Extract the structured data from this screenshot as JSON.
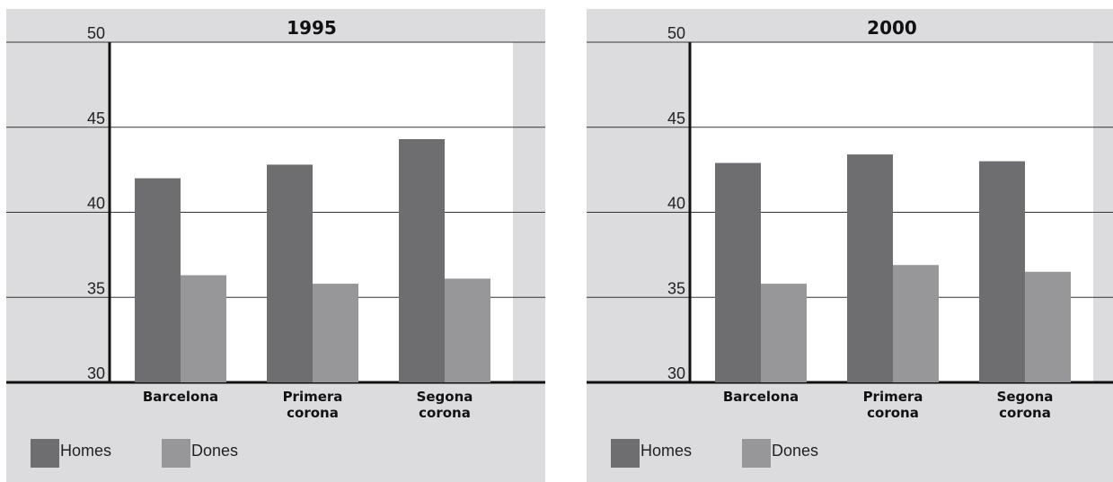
{
  "chart_data": [
    {
      "type": "bar",
      "title": "1995",
      "categories": [
        [
          "Barcelona"
        ],
        [
          "Primera",
          "corona"
        ],
        [
          "Segona",
          "corona"
        ]
      ],
      "series": [
        {
          "name": "Homes",
          "color": "#6e6e70",
          "values": [
            42.0,
            42.8,
            44.3
          ]
        },
        {
          "name": "Dones",
          "color": "#97979a",
          "values": [
            36.3,
            35.8,
            36.1
          ]
        }
      ],
      "yticks": [
        "30",
        "35",
        "40",
        "45",
        "50"
      ],
      "ylim": [
        30,
        50
      ],
      "grid": true,
      "legend_position": "bottom-left"
    },
    {
      "type": "bar",
      "title": "2000",
      "categories": [
        [
          "Barcelona"
        ],
        [
          "Primera",
          "corona"
        ],
        [
          "Segona",
          "corona"
        ]
      ],
      "series": [
        {
          "name": "Homes",
          "color": "#6e6e70",
          "values": [
            42.9,
            43.4,
            43.0
          ]
        },
        {
          "name": "Dones",
          "color": "#97979a",
          "values": [
            35.8,
            36.9,
            36.5
          ]
        }
      ],
      "yticks": [
        "30",
        "35",
        "40",
        "45",
        "50"
      ],
      "ylim": [
        30,
        50
      ],
      "grid": true,
      "legend_position": "bottom-left"
    }
  ]
}
